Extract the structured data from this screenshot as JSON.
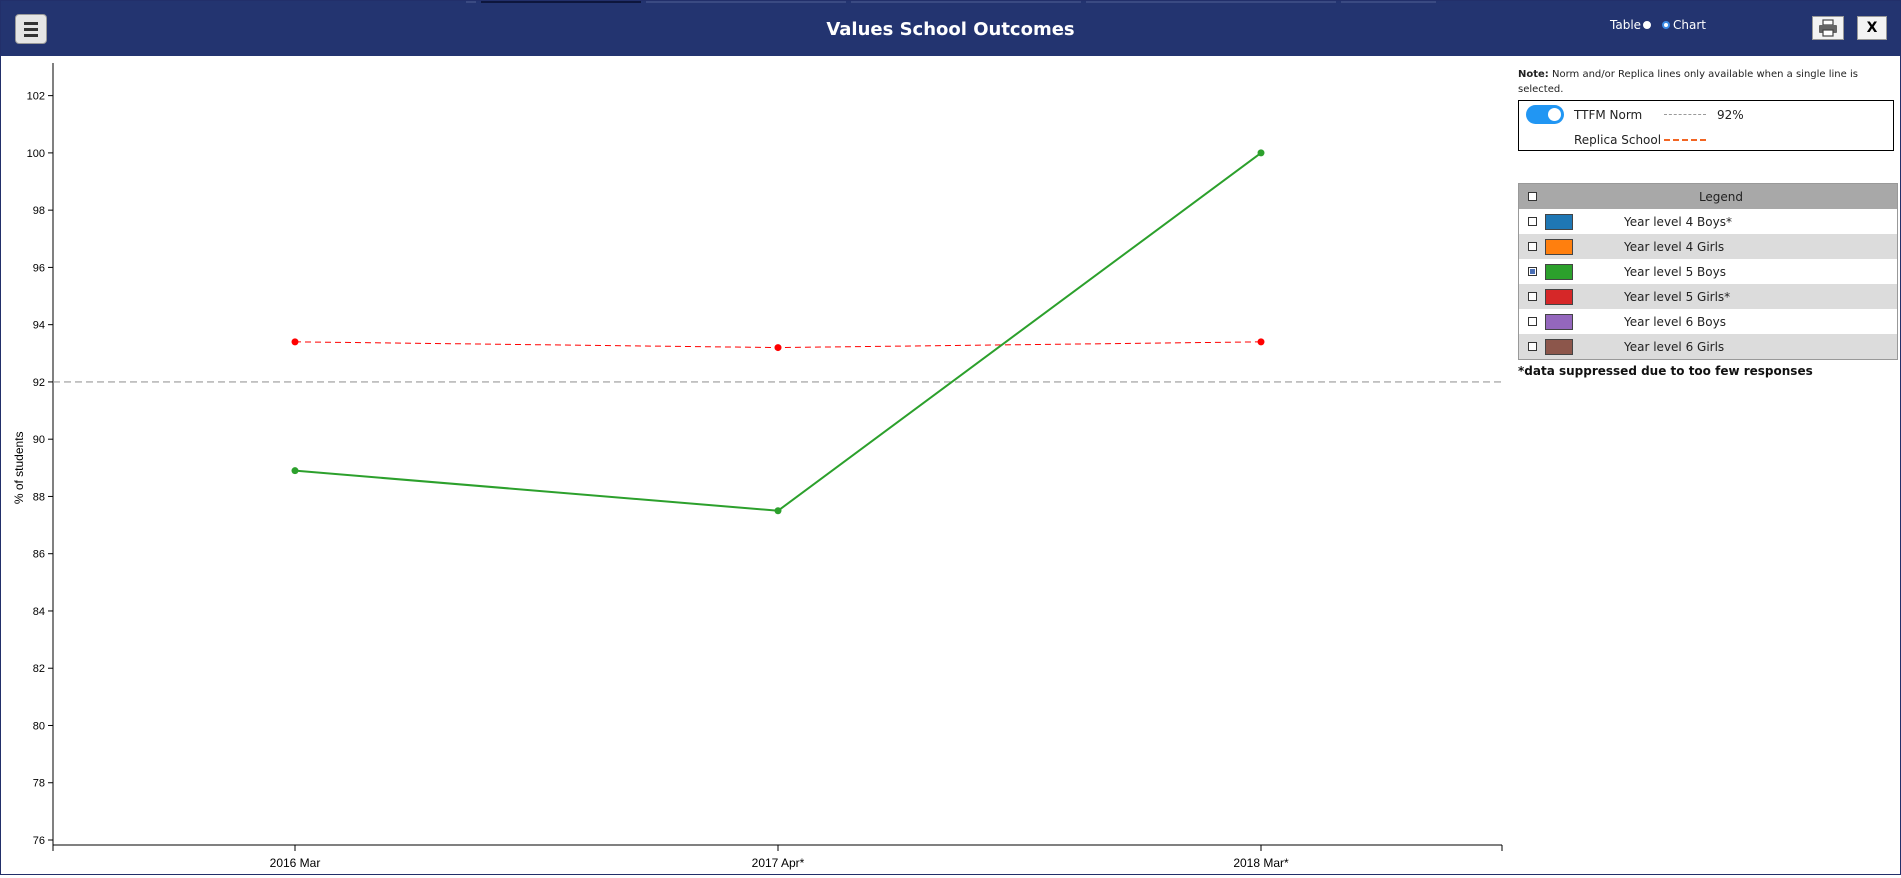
{
  "window": {
    "title": "Values School Outcomes"
  },
  "view_toggle": {
    "table_label": "Table",
    "chart_label": "Chart",
    "selected": "Chart"
  },
  "buttons": {
    "close_label": "X"
  },
  "note": {
    "prefix": "Note:",
    "text": " Norm and/or Replica lines only available when a single line is selected."
  },
  "norm": {
    "toggle_on": true,
    "norm_label": "TTFM Norm",
    "norm_value": "92%",
    "replica_label": "Replica School"
  },
  "legend": {
    "header": "Legend",
    "items": [
      {
        "label": "Year level 4 Boys*",
        "color": "#1f77b4",
        "checked": false
      },
      {
        "label": "Year level 4 Girls",
        "color": "#ff7f0e",
        "checked": false
      },
      {
        "label": "Year level 5 Boys",
        "color": "#2ca02c",
        "checked": true
      },
      {
        "label": "Year level 5 Girls*",
        "color": "#d62728",
        "checked": false
      },
      {
        "label": "Year level 6 Boys",
        "color": "#9467bd",
        "checked": false
      },
      {
        "label": "Year level 6 Girls",
        "color": "#8c564b",
        "checked": false
      }
    ],
    "footnote": "*data suppressed due to too few responses"
  },
  "colors": {
    "header_bg": "#233470",
    "series": "#2ca02c",
    "replica": "#ff0000",
    "norm": "#9a9a9a"
  },
  "chart_data": {
    "type": "line",
    "ylabel": "% of students",
    "xlabel": "",
    "ylim": [
      76,
      103
    ],
    "yticks": [
      76,
      78,
      80,
      82,
      84,
      86,
      88,
      90,
      92,
      94,
      96,
      98,
      100,
      102
    ],
    "categories": [
      "2016 Mar",
      "2017 Apr*",
      "2018 Mar*"
    ],
    "series": [
      {
        "name": "Year level 5 Boys",
        "color": "#2ca02c",
        "values": [
          88.9,
          87.5,
          100
        ]
      }
    ],
    "replica": {
      "name": "Replica School",
      "values": [
        93.4,
        93.2,
        93.4
      ]
    },
    "norm": {
      "name": "TTFM Norm",
      "value": 92
    }
  }
}
